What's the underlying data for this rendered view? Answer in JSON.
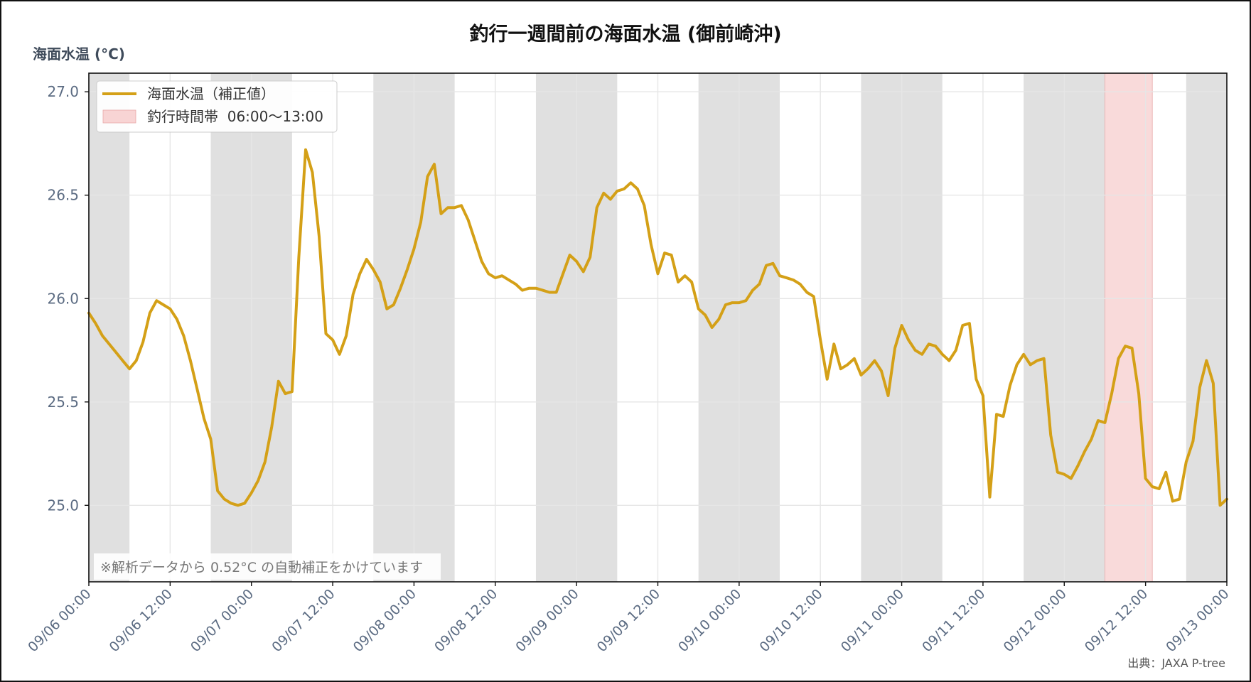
{
  "chart_data": {
    "type": "line",
    "title": "釣行一週間前の海面水温 (御前崎沖)",
    "ylabel": "海面水温 (°C)",
    "xlabel": "",
    "ylim": [
      24.63,
      27.09
    ],
    "yticks": [
      "25.0",
      "25.5",
      "26.0",
      "26.5",
      "27.0"
    ],
    "xlim_hours": [
      0,
      168
    ],
    "xticks": [
      "09/06 00:00",
      "09/06 12:00",
      "09/07 00:00",
      "09/07 12:00",
      "09/08 00:00",
      "09/08 12:00",
      "09/09 00:00",
      "09/09 12:00",
      "09/10 00:00",
      "09/10 12:00",
      "09/11 00:00",
      "09/11 12:00",
      "09/12 00:00",
      "09/12 12:00",
      "09/13 00:00"
    ],
    "grid": true,
    "legend_position": "top-left",
    "night_shading": [
      [
        0,
        6
      ],
      [
        18,
        30
      ],
      [
        42,
        54
      ],
      [
        66,
        78
      ],
      [
        90,
        102
      ],
      [
        114,
        126
      ],
      [
        138,
        150
      ],
      [
        162,
        168
      ]
    ],
    "fishing_window": [
      150,
      157
    ],
    "series": [
      {
        "name": "海面水温（補正値）",
        "color": "#d4a017",
        "points": [
          [
            0,
            25.93
          ],
          [
            1,
            25.88
          ],
          [
            2,
            25.82
          ],
          [
            3,
            25.78
          ],
          [
            4,
            25.74
          ],
          [
            5,
            25.7
          ],
          [
            6,
            25.66
          ],
          [
            7,
            25.7
          ],
          [
            8,
            25.79
          ],
          [
            9,
            25.93
          ],
          [
            10,
            25.99
          ],
          [
            11,
            25.97
          ],
          [
            12,
            25.95
          ],
          [
            13,
            25.9
          ],
          [
            14,
            25.82
          ],
          [
            15,
            25.7
          ],
          [
            16,
            25.56
          ],
          [
            17,
            25.42
          ],
          [
            18,
            25.32
          ],
          [
            19,
            25.07
          ],
          [
            20,
            25.03
          ],
          [
            21,
            25.01
          ],
          [
            22,
            25.0
          ],
          [
            23,
            25.01
          ],
          [
            24,
            25.06
          ],
          [
            25,
            25.12
          ],
          [
            26,
            25.21
          ],
          [
            27,
            25.38
          ],
          [
            28,
            25.6
          ],
          [
            29,
            25.54
          ],
          [
            30,
            25.55
          ],
          [
            31,
            26.2
          ],
          [
            32,
            26.72
          ],
          [
            33,
            26.61
          ],
          [
            34,
            26.3
          ],
          [
            35,
            25.83
          ],
          [
            36,
            25.8
          ],
          [
            37,
            25.73
          ],
          [
            38,
            25.82
          ],
          [
            39,
            26.02
          ],
          [
            40,
            26.12
          ],
          [
            41,
            26.19
          ],
          [
            42,
            26.14
          ],
          [
            43,
            26.08
          ],
          [
            44,
            25.95
          ],
          [
            45,
            25.97
          ],
          [
            46,
            26.05
          ],
          [
            47,
            26.14
          ],
          [
            48,
            26.24
          ],
          [
            49,
            26.37
          ],
          [
            50,
            26.59
          ],
          [
            51,
            26.65
          ],
          [
            52,
            26.41
          ],
          [
            53,
            26.44
          ],
          [
            54,
            26.44
          ],
          [
            55,
            26.45
          ],
          [
            56,
            26.38
          ],
          [
            57,
            26.28
          ],
          [
            58,
            26.18
          ],
          [
            59,
            26.12
          ],
          [
            60,
            26.1
          ],
          [
            61,
            26.11
          ],
          [
            62,
            26.09
          ],
          [
            63,
            26.07
          ],
          [
            64,
            26.04
          ],
          [
            65,
            26.05
          ],
          [
            66,
            26.05
          ],
          [
            67,
            26.04
          ],
          [
            68,
            26.03
          ],
          [
            69,
            26.03
          ],
          [
            70,
            26.12
          ],
          [
            71,
            26.21
          ],
          [
            72,
            26.18
          ],
          [
            73,
            26.13
          ],
          [
            74,
            26.2
          ],
          [
            75,
            26.44
          ],
          [
            76,
            26.51
          ],
          [
            77,
            26.48
          ],
          [
            78,
            26.52
          ],
          [
            79,
            26.53
          ],
          [
            80,
            26.56
          ],
          [
            81,
            26.53
          ],
          [
            82,
            26.45
          ],
          [
            83,
            26.26
          ],
          [
            84,
            26.12
          ],
          [
            85,
            26.22
          ],
          [
            86,
            26.21
          ],
          [
            87,
            26.08
          ],
          [
            88,
            26.11
          ],
          [
            89,
            26.08
          ],
          [
            90,
            25.95
          ],
          [
            91,
            25.92
          ],
          [
            92,
            25.86
          ],
          [
            93,
            25.9
          ],
          [
            94,
            25.97
          ],
          [
            95,
            25.98
          ],
          [
            96,
            25.98
          ],
          [
            97,
            25.99
          ],
          [
            98,
            26.04
          ],
          [
            99,
            26.07
          ],
          [
            100,
            26.16
          ],
          [
            101,
            26.17
          ],
          [
            102,
            26.11
          ],
          [
            103,
            26.1
          ],
          [
            104,
            26.09
          ],
          [
            105,
            26.07
          ],
          [
            106,
            26.03
          ],
          [
            107,
            26.01
          ],
          [
            108,
            25.8
          ],
          [
            109,
            25.61
          ],
          [
            110,
            25.78
          ],
          [
            111,
            25.66
          ],
          [
            112,
            25.68
          ],
          [
            113,
            25.71
          ],
          [
            114,
            25.63
          ],
          [
            115,
            25.66
          ],
          [
            116,
            25.7
          ],
          [
            117,
            25.65
          ],
          [
            118,
            25.53
          ],
          [
            119,
            25.76
          ],
          [
            120,
            25.87
          ],
          [
            121,
            25.8
          ],
          [
            122,
            25.75
          ],
          [
            123,
            25.73
          ],
          [
            124,
            25.78
          ],
          [
            125,
            25.77
          ],
          [
            126,
            25.73
          ],
          [
            127,
            25.7
          ],
          [
            128,
            25.75
          ],
          [
            129,
            25.87
          ],
          [
            130,
            25.88
          ],
          [
            131,
            25.61
          ],
          [
            132,
            25.53
          ],
          [
            133,
            25.04
          ],
          [
            134,
            25.44
          ],
          [
            135,
            25.43
          ],
          [
            136,
            25.58
          ],
          [
            137,
            25.68
          ],
          [
            138,
            25.73
          ],
          [
            139,
            25.68
          ],
          [
            140,
            25.7
          ],
          [
            141,
            25.71
          ],
          [
            142,
            25.34
          ],
          [
            143,
            25.16
          ],
          [
            144,
            25.15
          ],
          [
            145,
            25.13
          ],
          [
            146,
            25.19
          ],
          [
            147,
            25.26
          ],
          [
            148,
            25.32
          ],
          [
            149,
            25.41
          ],
          [
            150,
            25.4
          ],
          [
            151,
            25.54
          ],
          [
            152,
            25.71
          ],
          [
            153,
            25.77
          ],
          [
            154,
            25.76
          ],
          [
            155,
            25.54
          ],
          [
            156,
            25.13
          ],
          [
            157,
            25.09
          ],
          [
            158,
            25.08
          ],
          [
            159,
            25.16
          ],
          [
            160,
            25.02
          ],
          [
            161,
            25.03
          ],
          [
            162,
            25.21
          ],
          [
            163,
            25.31
          ],
          [
            164,
            25.57
          ],
          [
            165,
            25.7
          ],
          [
            166,
            25.59
          ],
          [
            167,
            25.0
          ],
          [
            168,
            25.03
          ]
        ]
      }
    ],
    "legend": {
      "line_label": "海面水温（補正値）",
      "band_label": "釣行時間帯  06:00〜13:00",
      "band_color": "#f8d4d4"
    },
    "note": "※解析データから 0.52°C の自動補正をかけています",
    "source": "出典：JAXA P-tree",
    "colors": {
      "line": "#d4a017",
      "night_band": "#e0e0e0",
      "fishing_band": "#f8d4d4",
      "grid": "#e6e6e6",
      "tick_text": "#5b6b82"
    }
  }
}
